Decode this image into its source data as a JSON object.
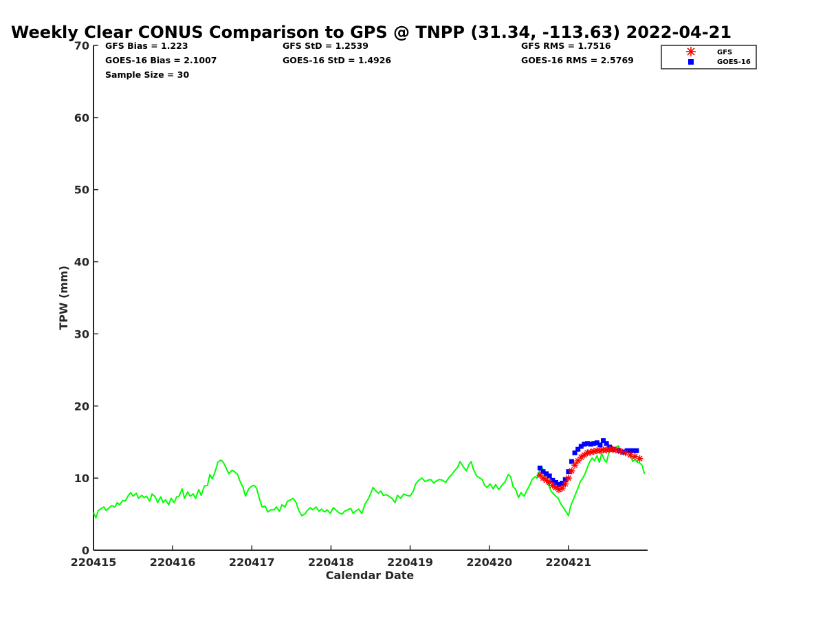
{
  "chart_data": {
    "type": "line",
    "title": "Weekly Clear CONUS Comparison to GPS @ TNPP (31.34, -113.63) 2022-04-21",
    "xlabel": "Calendar Date",
    "ylabel": "TPW (mm)",
    "xlim": [
      "220415",
      "220422"
    ],
    "ylim": [
      0,
      70
    ],
    "yticks": [
      "0",
      "10",
      "20",
      "30",
      "40",
      "50",
      "60",
      "70"
    ],
    "xticks": [
      "220415",
      "220416",
      "220417",
      "220418",
      "220419",
      "220420",
      "220421"
    ],
    "grid": false,
    "legend_position": "top-right",
    "stats": {
      "gfs_bias": "GFS Bias = 1.223",
      "goes_bias": "GOES-16 Bias = 2.1007",
      "sample_size": "Sample Size = 30",
      "gfs_std": "GFS StD = 1.2539",
      "goes_std": "GOES-16 StD = 1.4926",
      "gfs_rms": "GFS RMS = 1.7516",
      "goes_rms": "GOES-16 RMS = 2.5769"
    },
    "legend": [
      {
        "name": "GFS",
        "marker": "asterisk",
        "color": "#ff0000"
      },
      {
        "name": "GOES-16",
        "marker": "square",
        "color": "#0000ff"
      }
    ],
    "series": [
      {
        "name": "GPS",
        "style": "line",
        "color": "#00ff00",
        "points": [
          [
            15.0,
            5.2
          ],
          [
            15.03,
            4.5
          ],
          [
            15.06,
            5.5
          ],
          [
            15.1,
            5.8
          ],
          [
            15.13,
            6.0
          ],
          [
            15.16,
            5.5
          ],
          [
            15.2,
            5.9
          ],
          [
            15.23,
            6.2
          ],
          [
            15.27,
            6.0
          ],
          [
            15.3,
            6.6
          ],
          [
            15.33,
            6.3
          ],
          [
            15.37,
            6.9
          ],
          [
            15.4,
            6.8
          ],
          [
            15.44,
            7.6
          ],
          [
            15.47,
            8.0
          ],
          [
            15.5,
            7.5
          ],
          [
            15.54,
            7.9
          ],
          [
            15.57,
            7.2
          ],
          [
            15.61,
            7.6
          ],
          [
            15.64,
            7.3
          ],
          [
            15.67,
            7.5
          ],
          [
            15.71,
            6.8
          ],
          [
            15.74,
            7.8
          ],
          [
            15.78,
            7.4
          ],
          [
            15.81,
            6.6
          ],
          [
            15.85,
            7.4
          ],
          [
            15.88,
            6.6
          ],
          [
            15.91,
            7.0
          ],
          [
            15.95,
            6.3
          ],
          [
            15.98,
            7.2
          ],
          [
            16.02,
            6.6
          ],
          [
            16.05,
            7.4
          ],
          [
            16.08,
            7.5
          ],
          [
            16.12,
            8.5
          ],
          [
            16.15,
            7.2
          ],
          [
            16.19,
            8.1
          ],
          [
            16.22,
            7.5
          ],
          [
            16.26,
            7.8
          ],
          [
            16.29,
            7.2
          ],
          [
            16.33,
            8.4
          ],
          [
            16.36,
            7.6
          ],
          [
            16.4,
            8.9
          ],
          [
            16.44,
            9.0
          ],
          [
            16.47,
            10.5
          ],
          [
            16.5,
            9.9
          ],
          [
            16.54,
            11.0
          ],
          [
            16.57,
            12.2
          ],
          [
            16.61,
            12.5
          ],
          [
            16.64,
            12.2
          ],
          [
            16.68,
            11.3
          ],
          [
            16.71,
            10.6
          ],
          [
            16.75,
            11.1
          ],
          [
            16.78,
            10.9
          ],
          [
            16.82,
            10.5
          ],
          [
            16.85,
            9.6
          ],
          [
            16.89,
            8.7
          ],
          [
            16.92,
            7.5
          ],
          [
            16.96,
            8.5
          ],
          [
            17.0,
            8.9
          ],
          [
            17.03,
            9.0
          ],
          [
            17.06,
            8.6
          ],
          [
            17.1,
            7.0
          ],
          [
            17.13,
            6.0
          ],
          [
            17.17,
            6.1
          ],
          [
            17.2,
            5.3
          ],
          [
            17.24,
            5.6
          ],
          [
            17.28,
            5.6
          ],
          [
            17.31,
            6.0
          ],
          [
            17.35,
            5.4
          ],
          [
            17.38,
            6.3
          ],
          [
            17.42,
            6.0
          ],
          [
            17.45,
            6.8
          ],
          [
            17.49,
            7.0
          ],
          [
            17.52,
            7.2
          ],
          [
            17.56,
            6.6
          ],
          [
            17.59,
            5.6
          ],
          [
            17.63,
            4.8
          ],
          [
            17.67,
            5.0
          ],
          [
            17.7,
            5.5
          ],
          [
            17.74,
            5.9
          ],
          [
            17.77,
            5.6
          ],
          [
            17.81,
            6.0
          ],
          [
            17.85,
            5.4
          ],
          [
            17.88,
            5.7
          ],
          [
            17.92,
            5.3
          ],
          [
            17.95,
            5.6
          ],
          [
            17.99,
            5.1
          ],
          [
            18.03,
            5.9
          ],
          [
            18.06,
            5.6
          ],
          [
            18.1,
            5.2
          ],
          [
            18.14,
            5.0
          ],
          [
            18.17,
            5.4
          ],
          [
            18.21,
            5.6
          ],
          [
            18.25,
            5.8
          ],
          [
            18.28,
            5.1
          ],
          [
            18.32,
            5.5
          ],
          [
            18.35,
            5.7
          ],
          [
            18.39,
            5.1
          ],
          [
            18.43,
            6.4
          ],
          [
            18.47,
            7.1
          ],
          [
            18.5,
            7.8
          ],
          [
            18.53,
            8.7
          ],
          [
            18.56,
            8.3
          ],
          [
            18.6,
            7.9
          ],
          [
            18.63,
            8.2
          ],
          [
            18.66,
            7.6
          ],
          [
            18.7,
            7.7
          ],
          [
            18.73,
            7.5
          ],
          [
            18.77,
            7.2
          ],
          [
            18.81,
            6.6
          ],
          [
            18.84,
            7.6
          ],
          [
            18.88,
            7.2
          ],
          [
            18.92,
            7.8
          ],
          [
            18.96,
            7.6
          ],
          [
            19.0,
            7.5
          ],
          [
            19.04,
            8.2
          ],
          [
            19.07,
            9.2
          ],
          [
            19.11,
            9.7
          ],
          [
            19.15,
            10.0
          ],
          [
            19.19,
            9.5
          ],
          [
            19.22,
            9.7
          ],
          [
            19.26,
            9.8
          ],
          [
            19.3,
            9.3
          ],
          [
            19.33,
            9.6
          ],
          [
            19.37,
            9.8
          ],
          [
            19.41,
            9.7
          ],
          [
            19.45,
            9.4
          ],
          [
            19.49,
            10.1
          ],
          [
            19.52,
            10.4
          ],
          [
            19.56,
            11.0
          ],
          [
            19.6,
            11.5
          ],
          [
            19.63,
            12.3
          ],
          [
            19.67,
            11.6
          ],
          [
            19.71,
            11.0
          ],
          [
            19.74,
            11.8
          ],
          [
            19.77,
            12.3
          ],
          [
            19.8,
            11.2
          ],
          [
            19.84,
            10.3
          ],
          [
            19.88,
            10.0
          ],
          [
            19.91,
            9.8
          ],
          [
            19.94,
            9.0
          ],
          [
            19.97,
            8.7
          ],
          [
            20.01,
            9.2
          ],
          [
            20.05,
            8.5
          ],
          [
            20.08,
            9.1
          ],
          [
            20.12,
            8.4
          ],
          [
            20.16,
            9.0
          ],
          [
            20.2,
            9.5
          ],
          [
            20.24,
            10.5
          ],
          [
            20.27,
            10.2
          ],
          [
            20.3,
            8.8
          ],
          [
            20.33,
            8.5
          ],
          [
            20.37,
            7.3
          ],
          [
            20.4,
            8.0
          ],
          [
            20.44,
            7.5
          ],
          [
            20.47,
            8.2
          ],
          [
            20.51,
            9.0
          ],
          [
            20.54,
            9.8
          ],
          [
            20.58,
            10.2
          ],
          [
            20.6,
            10.0
          ],
          [
            20.63,
            10.9
          ],
          [
            20.66,
            11.6
          ],
          [
            20.69,
            11.0
          ],
          [
            20.72,
            9.8
          ],
          [
            20.75,
            9.0
          ],
          [
            20.78,
            8.2
          ],
          [
            20.81,
            7.8
          ],
          [
            20.84,
            7.5
          ],
          [
            20.87,
            7.2
          ],
          [
            20.9,
            6.5
          ],
          [
            20.93,
            6.0
          ],
          [
            20.96,
            5.5
          ],
          [
            21.0,
            4.8
          ],
          [
            21.03,
            6.2
          ],
          [
            21.06,
            7.0
          ],
          [
            21.09,
            7.8
          ],
          [
            21.12,
            8.6
          ],
          [
            21.15,
            9.5
          ],
          [
            21.18,
            10.0
          ],
          [
            21.21,
            10.6
          ],
          [
            21.24,
            11.5
          ],
          [
            21.27,
            12.3
          ],
          [
            21.3,
            12.8
          ],
          [
            21.33,
            12.4
          ],
          [
            21.36,
            13.1
          ],
          [
            21.39,
            12.2
          ],
          [
            21.42,
            13.4
          ],
          [
            21.45,
            12.6
          ],
          [
            21.48,
            12.2
          ],
          [
            21.51,
            13.5
          ],
          [
            21.54,
            14.3
          ],
          [
            21.57,
            14.0
          ],
          [
            21.6,
            14.2
          ],
          [
            21.63,
            14.5
          ],
          [
            21.66,
            13.8
          ],
          [
            21.69,
            13.6
          ],
          [
            21.72,
            14.0
          ],
          [
            21.75,
            13.9
          ],
          [
            21.78,
            13.5
          ],
          [
            21.81,
            12.3
          ],
          [
            21.84,
            12.6
          ],
          [
            21.87,
            12.2
          ],
          [
            21.9,
            12.1
          ],
          [
            21.93,
            11.8
          ],
          [
            21.96,
            10.6
          ]
        ]
      },
      {
        "name": "GFS",
        "style": "marker",
        "color": "#ff0000",
        "points": [
          [
            20.64,
            10.4
          ],
          [
            20.68,
            10.0
          ],
          [
            20.72,
            9.7
          ],
          [
            20.76,
            9.4
          ],
          [
            20.8,
            9.0
          ],
          [
            20.84,
            8.7
          ],
          [
            20.88,
            8.4
          ],
          [
            20.92,
            8.6
          ],
          [
            20.96,
            9.2
          ],
          [
            21.0,
            10.0
          ],
          [
            21.04,
            11.0
          ],
          [
            21.08,
            11.8
          ],
          [
            21.12,
            12.4
          ],
          [
            21.16,
            12.9
          ],
          [
            21.2,
            13.2
          ],
          [
            21.24,
            13.5
          ],
          [
            21.28,
            13.6
          ],
          [
            21.32,
            13.7
          ],
          [
            21.36,
            13.8
          ],
          [
            21.4,
            13.8
          ],
          [
            21.44,
            13.9
          ],
          [
            21.48,
            13.9
          ],
          [
            21.52,
            14.0
          ],
          [
            21.56,
            14.0
          ],
          [
            21.6,
            13.9
          ],
          [
            21.66,
            13.7
          ],
          [
            21.72,
            13.5
          ],
          [
            21.78,
            13.2
          ],
          [
            21.84,
            13.0
          ],
          [
            21.9,
            12.7
          ]
        ]
      },
      {
        "name": "GOES-16",
        "style": "marker",
        "color": "#0000ff",
        "points": [
          [
            20.64,
            11.4
          ],
          [
            20.68,
            10.9
          ],
          [
            20.72,
            10.6
          ],
          [
            20.76,
            10.3
          ],
          [
            20.8,
            9.7
          ],
          [
            20.84,
            9.4
          ],
          [
            20.88,
            9.1
          ],
          [
            20.92,
            9.3
          ],
          [
            20.96,
            9.8
          ],
          [
            21.0,
            10.9
          ],
          [
            21.04,
            12.3
          ],
          [
            21.08,
            13.5
          ],
          [
            21.12,
            14.0
          ],
          [
            21.16,
            14.4
          ],
          [
            21.2,
            14.7
          ],
          [
            21.24,
            14.8
          ],
          [
            21.28,
            14.7
          ],
          [
            21.32,
            14.8
          ],
          [
            21.36,
            14.9
          ],
          [
            21.4,
            14.6
          ],
          [
            21.44,
            15.2
          ],
          [
            21.48,
            14.8
          ],
          [
            21.52,
            14.3
          ],
          [
            21.56,
            14.0
          ],
          [
            21.64,
            13.8
          ],
          [
            21.7,
            13.6
          ],
          [
            21.74,
            13.8
          ],
          [
            21.78,
            13.8
          ],
          [
            21.82,
            13.8
          ],
          [
            21.86,
            13.8
          ]
        ]
      }
    ]
  }
}
